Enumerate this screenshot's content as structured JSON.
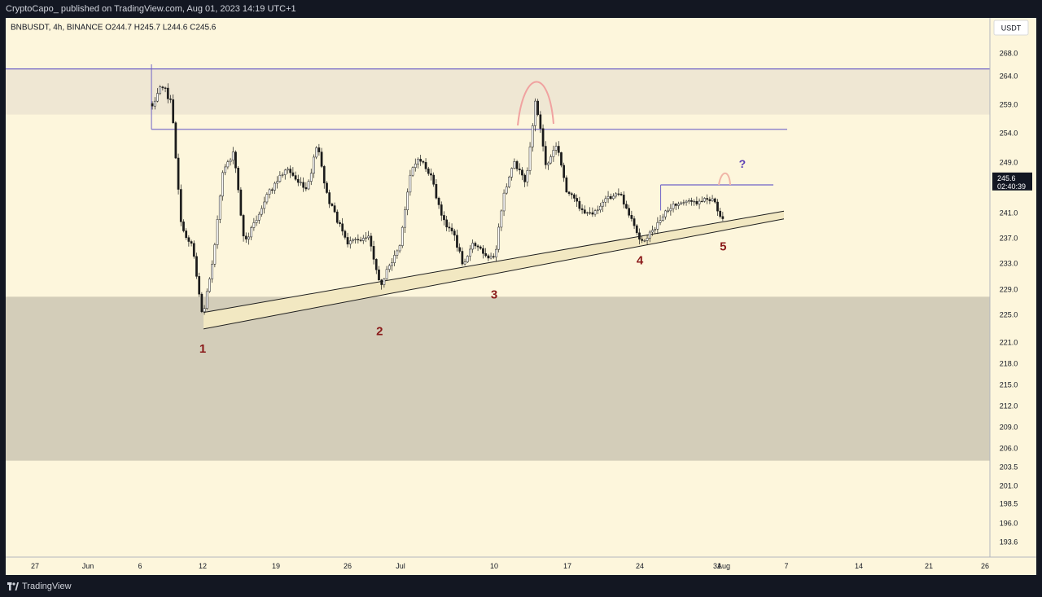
{
  "publish_header": "CryptoCapo_ published on TradingView.com, Aug 01, 2023 14:19 UTC+1",
  "footer_brand": "TradingView",
  "chart_data": {
    "type": "candlestick",
    "symbol_line": "BNBUSDT, 4h, BINANCE  O244.7  H245.7  L244.6  C245.6",
    "currency": "USDT",
    "last_price_label": "245.6",
    "countdown_label": "02:40:39",
    "y_tick_labels": [
      "268.0",
      "264.0",
      "259.0",
      "254.0",
      "249.0",
      "245.0",
      "241.0",
      "237.0",
      "233.0",
      "229.0",
      "225.0",
      "221.0",
      "218.0",
      "215.0",
      "212.0",
      "209.0",
      "206.0",
      "203.5",
      "201.0",
      "198.5",
      "196.0",
      "193.6"
    ],
    "x_tick_labels": [
      "27",
      "Jun",
      "6",
      "12",
      "19",
      "26",
      "Jul",
      "10",
      "17",
      "24",
      "31",
      "Aug",
      "7",
      "14",
      "21",
      "26"
    ],
    "price_path": [
      {
        "date": "2023-06-07",
        "price": 268.0
      },
      {
        "date": "2023-06-07",
        "price": 258.0
      },
      {
        "date": "2023-06-08",
        "price": 263.0
      },
      {
        "date": "2023-06-09",
        "price": 259.0
      },
      {
        "date": "2023-06-10",
        "price": 238.0
      },
      {
        "date": "2023-06-11",
        "price": 236.0
      },
      {
        "date": "2023-06-12",
        "price": 224.5
      },
      {
        "date": "2023-06-13",
        "price": 234.0
      },
      {
        "date": "2023-06-14",
        "price": 248.0
      },
      {
        "date": "2023-06-15",
        "price": 250.5
      },
      {
        "date": "2023-06-16",
        "price": 236.0
      },
      {
        "date": "2023-06-18",
        "price": 243.0
      },
      {
        "date": "2023-06-20",
        "price": 248.0
      },
      {
        "date": "2023-06-22",
        "price": 244.0
      },
      {
        "date": "2023-06-23",
        "price": 252.0
      },
      {
        "date": "2023-06-24",
        "price": 243.0
      },
      {
        "date": "2023-06-26",
        "price": 236.0
      },
      {
        "date": "2023-06-28",
        "price": 237.5
      },
      {
        "date": "2023-06-29",
        "price": 229.5
      },
      {
        "date": "2023-07-01",
        "price": 236.0
      },
      {
        "date": "2023-07-02",
        "price": 248.0
      },
      {
        "date": "2023-07-03",
        "price": 249.5
      },
      {
        "date": "2023-07-04",
        "price": 246.0
      },
      {
        "date": "2023-07-05",
        "price": 240.0
      },
      {
        "date": "2023-07-06",
        "price": 238.0
      },
      {
        "date": "2023-07-07",
        "price": 233.0
      },
      {
        "date": "2023-07-08",
        "price": 236.0
      },
      {
        "date": "2023-07-10",
        "price": 233.5
      },
      {
        "date": "2023-07-11",
        "price": 244.0
      },
      {
        "date": "2023-07-12",
        "price": 249.0
      },
      {
        "date": "2023-07-13",
        "price": 245.0
      },
      {
        "date": "2023-07-14",
        "price": 260.0
      },
      {
        "date": "2023-07-15",
        "price": 248.0
      },
      {
        "date": "2023-07-16",
        "price": 252.0
      },
      {
        "date": "2023-07-17",
        "price": 244.0
      },
      {
        "date": "2023-07-19",
        "price": 240.5
      },
      {
        "date": "2023-07-21",
        "price": 243.0
      },
      {
        "date": "2023-07-22",
        "price": 244.0
      },
      {
        "date": "2023-07-24",
        "price": 236.5
      },
      {
        "date": "2023-07-25",
        "price": 237.5
      },
      {
        "date": "2023-07-26",
        "price": 240.0
      },
      {
        "date": "2023-07-27",
        "price": 242.0
      },
      {
        "date": "2023-07-29",
        "price": 242.5
      },
      {
        "date": "2023-07-31",
        "price": 243.0
      },
      {
        "date": "2023-08-01",
        "price": 239.5
      },
      {
        "date": "2023-08-01",
        "price": 245.6
      }
    ],
    "annotations": [
      {
        "text": "1",
        "date": "2023-06-12",
        "price": 219.5
      },
      {
        "text": "2",
        "date": "2023-06-29",
        "price": 222.0
      },
      {
        "text": "3",
        "date": "2023-07-10",
        "price": 227.5
      },
      {
        "text": "4",
        "date": "2023-07-24",
        "price": 232.8
      },
      {
        "text": "5",
        "date": "2023-08-01",
        "price": 235.0
      },
      {
        "text": "?",
        "date": "2023-08-03",
        "price": 248.0
      }
    ]
  }
}
